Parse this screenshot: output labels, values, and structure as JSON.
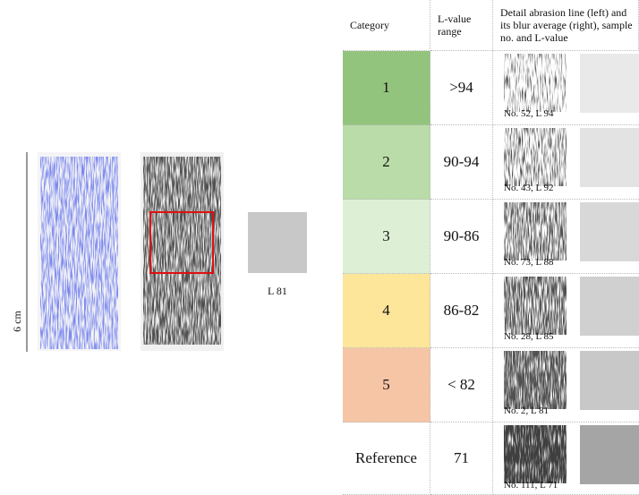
{
  "figure": {
    "scale_label": "6 cm",
    "swatch_label": "L 81",
    "swatch_color": "#c8c8c8"
  },
  "table": {
    "header": [
      "Category",
      "L-value range",
      "Detail abrasion line (left) and its blur average (right), sample no. and L-value"
    ],
    "rows": [
      {
        "category": "1",
        "range": ">94",
        "sample": "No. 52, L 94",
        "color": "#93c47d",
        "swatch": "#e9e9e9"
      },
      {
        "category": "2",
        "range": "90-94",
        "sample": "No. 43, L 92",
        "color": "#b9dca8",
        "swatch": "#e3e3e3"
      },
      {
        "category": "3",
        "range": "90-86",
        "sample": "No. 73, L 88",
        "color": "#ddf0d6",
        "swatch": "#d8d8d8"
      },
      {
        "category": "4",
        "range": "86-82",
        "sample": "No. 28, L 85",
        "color": "#fde59a",
        "swatch": "#d0d0d0"
      },
      {
        "category": "5",
        "range": "< 82",
        "sample": "No. 2, L 81",
        "color": "#f6c5a6",
        "swatch": "#c8c8c8"
      },
      {
        "category": "Reference",
        "range": "71",
        "sample": "No. 111, L 71",
        "color": "#ffffff",
        "swatch": "#a5a5a5"
      }
    ]
  }
}
